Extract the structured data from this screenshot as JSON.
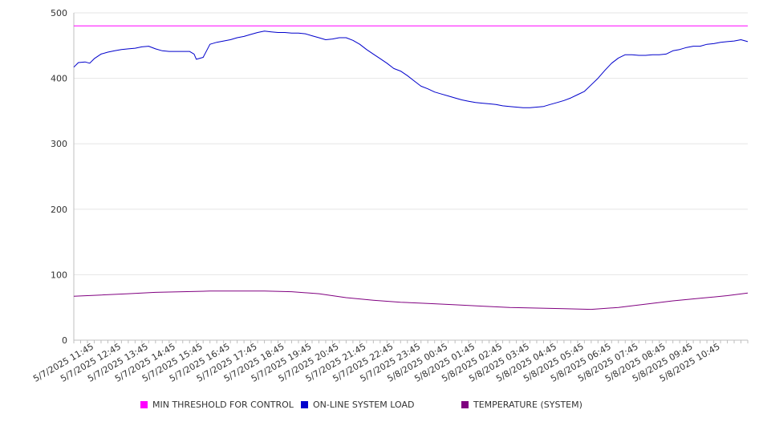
{
  "chart_data": {
    "type": "line",
    "title": "",
    "xlabel": "",
    "ylabel": "",
    "ylim": [
      0,
      500
    ],
    "y_ticks": [
      0,
      100,
      200,
      300,
      400,
      500
    ],
    "grid": "horizontal",
    "legend_position": "bottom",
    "x_tick_labels": [
      "5/7/2025 11:45",
      "5/7/2025 12:45",
      "5/7/2025 13:45",
      "5/7/2025 14:45",
      "5/7/2025 15:45",
      "5/7/2025 16:45",
      "5/7/2025 17:45",
      "5/7/2025 18:45",
      "5/7/2025 19:45",
      "5/7/2025 20:45",
      "5/7/2025 21:45",
      "5/7/2025 22:45",
      "5/7/2025 23:45",
      "5/8/2025 00:45",
      "5/8/2025 01:45",
      "5/8/2025 02:45",
      "5/8/2025 03:45",
      "5/8/2025 04:45",
      "5/8/2025 05:45",
      "5/8/2025 06:45",
      "5/8/2025 07:45",
      "5/8/2025 08:45",
      "5/8/2025 09:45",
      "5/8/2025 10:45"
    ],
    "x_range": [
      "5/7/2025 11:00",
      "5/8/2025 11:45"
    ],
    "series": [
      {
        "name": "MIN THRESHOLD FOR CONTROL",
        "color": "#ff00ff",
        "points": [
          [
            "5/7/2025 11:00",
            480
          ],
          [
            "5/8/2025 11:45",
            480
          ]
        ]
      },
      {
        "name": "ON-LINE SYSTEM LOAD",
        "color": "#0000cc",
        "points": [
          [
            "5/7/2025 11:00",
            417
          ],
          [
            "5/7/2025 11:10",
            424
          ],
          [
            "5/7/2025 11:25",
            425
          ],
          [
            "5/7/2025 11:35",
            423
          ],
          [
            "5/7/2025 11:45",
            430
          ],
          [
            "5/7/2025 12:00",
            437
          ],
          [
            "5/7/2025 12:15",
            440
          ],
          [
            "5/7/2025 12:30",
            442
          ],
          [
            "5/7/2025 12:45",
            444
          ],
          [
            "5/7/2025 13:00",
            445
          ],
          [
            "5/7/2025 13:15",
            446
          ],
          [
            "5/7/2025 13:30",
            448
          ],
          [
            "5/7/2025 13:45",
            449
          ],
          [
            "5/7/2025 14:00",
            445
          ],
          [
            "5/7/2025 14:15",
            442
          ],
          [
            "5/7/2025 14:30",
            441
          ],
          [
            "5/7/2025 14:45",
            441
          ],
          [
            "5/7/2025 15:00",
            441
          ],
          [
            "5/7/2025 15:15",
            441
          ],
          [
            "5/7/2025 15:25",
            437
          ],
          [
            "5/7/2025 15:30",
            429
          ],
          [
            "5/7/2025 15:45",
            432
          ],
          [
            "5/7/2025 16:00",
            452
          ],
          [
            "5/7/2025 16:15",
            455
          ],
          [
            "5/7/2025 16:30",
            457
          ],
          [
            "5/7/2025 16:45",
            459
          ],
          [
            "5/7/2025 17:00",
            462
          ],
          [
            "5/7/2025 17:15",
            464
          ],
          [
            "5/7/2025 17:30",
            467
          ],
          [
            "5/7/2025 17:45",
            470
          ],
          [
            "5/7/2025 18:00",
            472
          ],
          [
            "5/7/2025 18:15",
            471
          ],
          [
            "5/7/2025 18:30",
            470
          ],
          [
            "5/7/2025 18:45",
            470
          ],
          [
            "5/7/2025 19:00",
            469
          ],
          [
            "5/7/2025 19:15",
            469
          ],
          [
            "5/7/2025 19:30",
            468
          ],
          [
            "5/7/2025 19:45",
            465
          ],
          [
            "5/7/2025 20:00",
            462
          ],
          [
            "5/7/2025 20:15",
            459
          ],
          [
            "5/7/2025 20:30",
            460
          ],
          [
            "5/7/2025 20:45",
            462
          ],
          [
            "5/7/2025 21:00",
            462
          ],
          [
            "5/7/2025 21:15",
            458
          ],
          [
            "5/7/2025 21:30",
            452
          ],
          [
            "5/7/2025 21:45",
            444
          ],
          [
            "5/7/2025 22:00",
            437
          ],
          [
            "5/7/2025 22:15",
            430
          ],
          [
            "5/7/2025 22:30",
            423
          ],
          [
            "5/7/2025 22:45",
            415
          ],
          [
            "5/7/2025 23:00",
            411
          ],
          [
            "5/7/2025 23:15",
            404
          ],
          [
            "5/7/2025 23:30",
            396
          ],
          [
            "5/7/2025 23:45",
            388
          ],
          [
            "5/8/2025 00:00",
            384
          ],
          [
            "5/8/2025 00:15",
            379
          ],
          [
            "5/8/2025 00:30",
            376
          ],
          [
            "5/8/2025 00:45",
            373
          ],
          [
            "5/8/2025 01:00",
            370
          ],
          [
            "5/8/2025 01:15",
            367
          ],
          [
            "5/8/2025 01:30",
            365
          ],
          [
            "5/8/2025 01:45",
            363
          ],
          [
            "5/8/2025 02:00",
            362
          ],
          [
            "5/8/2025 02:15",
            361
          ],
          [
            "5/8/2025 02:30",
            360
          ],
          [
            "5/8/2025 02:45",
            358
          ],
          [
            "5/8/2025 03:00",
            357
          ],
          [
            "5/8/2025 03:15",
            356
          ],
          [
            "5/8/2025 03:30",
            355
          ],
          [
            "5/8/2025 03:45",
            355
          ],
          [
            "5/8/2025 04:00",
            356
          ],
          [
            "5/8/2025 04:15",
            357
          ],
          [
            "5/8/2025 04:30",
            360
          ],
          [
            "5/8/2025 04:45",
            363
          ],
          [
            "5/8/2025 05:00",
            366
          ],
          [
            "5/8/2025 05:15",
            370
          ],
          [
            "5/8/2025 05:30",
            375
          ],
          [
            "5/8/2025 05:45",
            380
          ],
          [
            "5/8/2025 06:00",
            390
          ],
          [
            "5/8/2025 06:15",
            400
          ],
          [
            "5/8/2025 06:30",
            412
          ],
          [
            "5/8/2025 06:45",
            423
          ],
          [
            "5/8/2025 07:00",
            431
          ],
          [
            "5/8/2025 07:15",
            436
          ],
          [
            "5/8/2025 07:30",
            436
          ],
          [
            "5/8/2025 07:45",
            435
          ],
          [
            "5/8/2025 08:00",
            435
          ],
          [
            "5/8/2025 08:15",
            436
          ],
          [
            "5/8/2025 08:30",
            436
          ],
          [
            "5/8/2025 08:45",
            437
          ],
          [
            "5/8/2025 09:00",
            442
          ],
          [
            "5/8/2025 09:15",
            444
          ],
          [
            "5/8/2025 09:30",
            447
          ],
          [
            "5/8/2025 09:45",
            449
          ],
          [
            "5/8/2025 10:00",
            449
          ],
          [
            "5/8/2025 10:15",
            452
          ],
          [
            "5/8/2025 10:30",
            453
          ],
          [
            "5/8/2025 10:45",
            455
          ],
          [
            "5/8/2025 11:00",
            456
          ],
          [
            "5/8/2025 11:15",
            457
          ],
          [
            "5/8/2025 11:30",
            459
          ],
          [
            "5/8/2025 11:45",
            456
          ]
        ]
      },
      {
        "name": "TEMPERATURE (SYSTEM)",
        "color": "#800080",
        "points": [
          [
            "5/7/2025 11:00",
            67
          ],
          [
            "5/7/2025 12:00",
            69
          ],
          [
            "5/7/2025 13:00",
            71
          ],
          [
            "5/7/2025 14:00",
            73
          ],
          [
            "5/7/2025 15:00",
            74
          ],
          [
            "5/7/2025 16:00",
            75
          ],
          [
            "5/7/2025 17:00",
            75
          ],
          [
            "5/7/2025 18:00",
            75
          ],
          [
            "5/7/2025 19:00",
            74
          ],
          [
            "5/7/2025 20:00",
            71
          ],
          [
            "5/7/2025 21:00",
            65
          ],
          [
            "5/7/2025 22:00",
            61
          ],
          [
            "5/7/2025 23:00",
            58
          ],
          [
            "5/8/2025 00:00",
            56
          ],
          [
            "5/8/2025 01:00",
            54
          ],
          [
            "5/8/2025 02:00",
            52
          ],
          [
            "5/8/2025 03:00",
            50
          ],
          [
            "5/8/2025 04:00",
            49
          ],
          [
            "5/8/2025 05:00",
            48
          ],
          [
            "5/8/2025 06:00",
            47
          ],
          [
            "5/8/2025 07:00",
            50
          ],
          [
            "5/8/2025 08:00",
            55
          ],
          [
            "5/8/2025 09:00",
            60
          ],
          [
            "5/8/2025 10:00",
            64
          ],
          [
            "5/8/2025 11:00",
            68
          ],
          [
            "5/8/2025 11:45",
            72
          ]
        ]
      }
    ]
  }
}
